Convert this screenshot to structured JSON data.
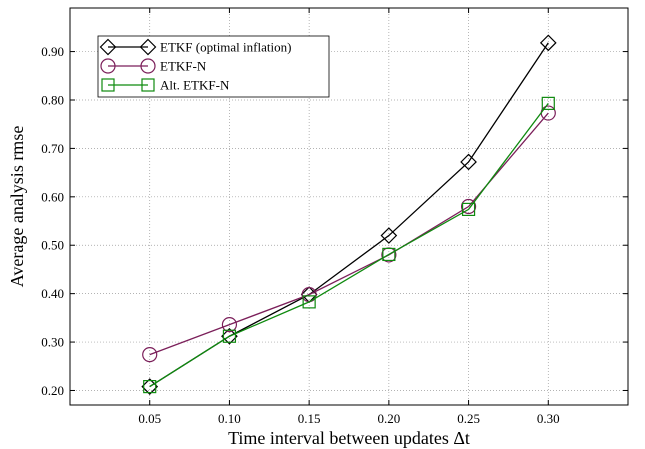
{
  "chart_data": {
    "type": "line",
    "xlabel": "Time interval between updates Δt",
    "ylabel": "Average analysis rmse",
    "xlim": [
      0.0,
      0.35
    ],
    "ylim": [
      0.17,
      0.99
    ],
    "x_ticks": [
      0.05,
      0.1,
      0.15,
      0.2,
      0.25,
      0.3
    ],
    "x_tick_labels": [
      "0.05",
      "0.10",
      "0.15",
      "0.20",
      "0.25",
      "0.30"
    ],
    "y_ticks": [
      0.2,
      0.3,
      0.4,
      0.5,
      0.6,
      0.7,
      0.8,
      0.9
    ],
    "y_tick_labels": [
      "0.20",
      "0.30",
      "0.40",
      "0.50",
      "0.60",
      "0.70",
      "0.80",
      "0.90"
    ],
    "grid": true,
    "legend_position": "top-left",
    "x": [
      0.05,
      0.1,
      0.15,
      0.2,
      0.25,
      0.3
    ],
    "series": [
      {
        "name": "ETKF (optimal inflation)",
        "color": "#000000",
        "marker": "diamond",
        "values": [
          0.208,
          0.312,
          0.398,
          0.52,
          0.672,
          0.918
        ]
      },
      {
        "name": "ETKF-N",
        "color": "#7b1f5a",
        "marker": "circle",
        "values": [
          0.274,
          0.336,
          0.398,
          0.48,
          0.58,
          0.773
        ]
      },
      {
        "name": "Alt. ETKF-N",
        "color": "#0f8a0f",
        "marker": "square",
        "values": [
          0.208,
          0.312,
          0.383,
          0.481,
          0.574,
          0.793
        ]
      }
    ]
  }
}
